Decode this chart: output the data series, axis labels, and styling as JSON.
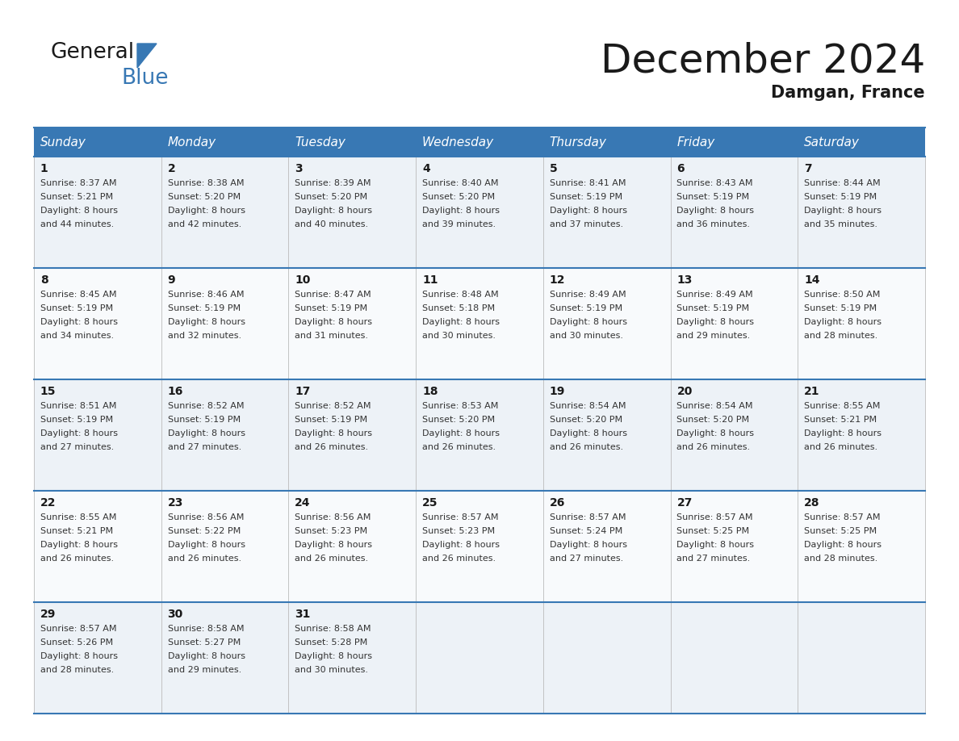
{
  "title": "December 2024",
  "subtitle": "Damgan, France",
  "header_color": "#3878b4",
  "header_text_color": "#ffffff",
  "bg_color": "#ffffff",
  "cell_bg_even": "#edf2f7",
  "cell_bg_odd": "#f8fafc",
  "day_names": [
    "Sunday",
    "Monday",
    "Tuesday",
    "Wednesday",
    "Thursday",
    "Friday",
    "Saturday"
  ],
  "days": [
    {
      "day": 1,
      "col": 0,
      "row": 0,
      "sunrise": "8:37 AM",
      "sunset": "5:21 PM",
      "daylight_hours": 8,
      "daylight_min": 44
    },
    {
      "day": 2,
      "col": 1,
      "row": 0,
      "sunrise": "8:38 AM",
      "sunset": "5:20 PM",
      "daylight_hours": 8,
      "daylight_min": 42
    },
    {
      "day": 3,
      "col": 2,
      "row": 0,
      "sunrise": "8:39 AM",
      "sunset": "5:20 PM",
      "daylight_hours": 8,
      "daylight_min": 40
    },
    {
      "day": 4,
      "col": 3,
      "row": 0,
      "sunrise": "8:40 AM",
      "sunset": "5:20 PM",
      "daylight_hours": 8,
      "daylight_min": 39
    },
    {
      "day": 5,
      "col": 4,
      "row": 0,
      "sunrise": "8:41 AM",
      "sunset": "5:19 PM",
      "daylight_hours": 8,
      "daylight_min": 37
    },
    {
      "day": 6,
      "col": 5,
      "row": 0,
      "sunrise": "8:43 AM",
      "sunset": "5:19 PM",
      "daylight_hours": 8,
      "daylight_min": 36
    },
    {
      "day": 7,
      "col": 6,
      "row": 0,
      "sunrise": "8:44 AM",
      "sunset": "5:19 PM",
      "daylight_hours": 8,
      "daylight_min": 35
    },
    {
      "day": 8,
      "col": 0,
      "row": 1,
      "sunrise": "8:45 AM",
      "sunset": "5:19 PM",
      "daylight_hours": 8,
      "daylight_min": 34
    },
    {
      "day": 9,
      "col": 1,
      "row": 1,
      "sunrise": "8:46 AM",
      "sunset": "5:19 PM",
      "daylight_hours": 8,
      "daylight_min": 32
    },
    {
      "day": 10,
      "col": 2,
      "row": 1,
      "sunrise": "8:47 AM",
      "sunset": "5:19 PM",
      "daylight_hours": 8,
      "daylight_min": 31
    },
    {
      "day": 11,
      "col": 3,
      "row": 1,
      "sunrise": "8:48 AM",
      "sunset": "5:18 PM",
      "daylight_hours": 8,
      "daylight_min": 30
    },
    {
      "day": 12,
      "col": 4,
      "row": 1,
      "sunrise": "8:49 AM",
      "sunset": "5:19 PM",
      "daylight_hours": 8,
      "daylight_min": 30
    },
    {
      "day": 13,
      "col": 5,
      "row": 1,
      "sunrise": "8:49 AM",
      "sunset": "5:19 PM",
      "daylight_hours": 8,
      "daylight_min": 29
    },
    {
      "day": 14,
      "col": 6,
      "row": 1,
      "sunrise": "8:50 AM",
      "sunset": "5:19 PM",
      "daylight_hours": 8,
      "daylight_min": 28
    },
    {
      "day": 15,
      "col": 0,
      "row": 2,
      "sunrise": "8:51 AM",
      "sunset": "5:19 PM",
      "daylight_hours": 8,
      "daylight_min": 27
    },
    {
      "day": 16,
      "col": 1,
      "row": 2,
      "sunrise": "8:52 AM",
      "sunset": "5:19 PM",
      "daylight_hours": 8,
      "daylight_min": 27
    },
    {
      "day": 17,
      "col": 2,
      "row": 2,
      "sunrise": "8:52 AM",
      "sunset": "5:19 PM",
      "daylight_hours": 8,
      "daylight_min": 26
    },
    {
      "day": 18,
      "col": 3,
      "row": 2,
      "sunrise": "8:53 AM",
      "sunset": "5:20 PM",
      "daylight_hours": 8,
      "daylight_min": 26
    },
    {
      "day": 19,
      "col": 4,
      "row": 2,
      "sunrise": "8:54 AM",
      "sunset": "5:20 PM",
      "daylight_hours": 8,
      "daylight_min": 26
    },
    {
      "day": 20,
      "col": 5,
      "row": 2,
      "sunrise": "8:54 AM",
      "sunset": "5:20 PM",
      "daylight_hours": 8,
      "daylight_min": 26
    },
    {
      "day": 21,
      "col": 6,
      "row": 2,
      "sunrise": "8:55 AM",
      "sunset": "5:21 PM",
      "daylight_hours": 8,
      "daylight_min": 26
    },
    {
      "day": 22,
      "col": 0,
      "row": 3,
      "sunrise": "8:55 AM",
      "sunset": "5:21 PM",
      "daylight_hours": 8,
      "daylight_min": 26
    },
    {
      "day": 23,
      "col": 1,
      "row": 3,
      "sunrise": "8:56 AM",
      "sunset": "5:22 PM",
      "daylight_hours": 8,
      "daylight_min": 26
    },
    {
      "day": 24,
      "col": 2,
      "row": 3,
      "sunrise": "8:56 AM",
      "sunset": "5:23 PM",
      "daylight_hours": 8,
      "daylight_min": 26
    },
    {
      "day": 25,
      "col": 3,
      "row": 3,
      "sunrise": "8:57 AM",
      "sunset": "5:23 PM",
      "daylight_hours": 8,
      "daylight_min": 26
    },
    {
      "day": 26,
      "col": 4,
      "row": 3,
      "sunrise": "8:57 AM",
      "sunset": "5:24 PM",
      "daylight_hours": 8,
      "daylight_min": 27
    },
    {
      "day": 27,
      "col": 5,
      "row": 3,
      "sunrise": "8:57 AM",
      "sunset": "5:25 PM",
      "daylight_hours": 8,
      "daylight_min": 27
    },
    {
      "day": 28,
      "col": 6,
      "row": 3,
      "sunrise": "8:57 AM",
      "sunset": "5:25 PM",
      "daylight_hours": 8,
      "daylight_min": 28
    },
    {
      "day": 29,
      "col": 0,
      "row": 4,
      "sunrise": "8:57 AM",
      "sunset": "5:26 PM",
      "daylight_hours": 8,
      "daylight_min": 28
    },
    {
      "day": 30,
      "col": 1,
      "row": 4,
      "sunrise": "8:58 AM",
      "sunset": "5:27 PM",
      "daylight_hours": 8,
      "daylight_min": 29
    },
    {
      "day": 31,
      "col": 2,
      "row": 4,
      "sunrise": "8:58 AM",
      "sunset": "5:28 PM",
      "daylight_hours": 8,
      "daylight_min": 30
    }
  ],
  "logo_general_color": "#1a1a1a",
  "logo_blue_color": "#3878b4",
  "logo_triangle_color": "#3878b4",
  "title_fontsize": 36,
  "subtitle_fontsize": 15,
  "header_fontsize": 11,
  "day_num_fontsize": 10,
  "cell_text_fontsize": 8
}
